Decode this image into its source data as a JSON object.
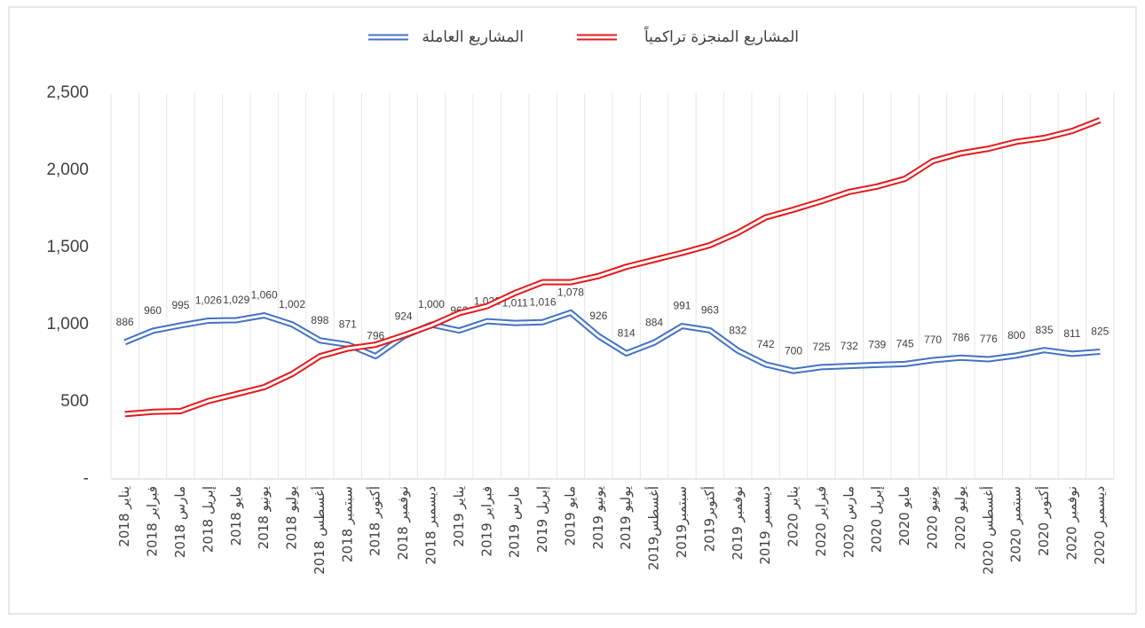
{
  "chart_data": {
    "type": "line",
    "categories": [
      "يناير 2018",
      "فبراير 2018",
      "مارس 2018",
      "إبريل 2018",
      "مايو 2018",
      "يونيو 2018",
      "يوليو 2018",
      "أغسطس 2018",
      "سبتمبر 2018",
      "أكتوبر 2018",
      "نوفمبر 2018",
      "ديسمبر 2018",
      "يناير 2019",
      "فبراير 2019",
      "مارس 2019",
      "إبريل 2019",
      "مايو 2019",
      "يونيو 2019",
      "يوليو 2019",
      "أغسطس2019",
      "سبتمبر2019",
      "أكتوبر2019",
      "نوفمبر 2019",
      "ديسمبر 2019",
      "يناير 2020",
      "فبراير 2020",
      "مارس 2020",
      "إبريل 2020",
      "مايو 2020",
      "يونيو 2020",
      "يوليو 2020",
      "أغسطس 2020",
      "سبتمبر 2020",
      "أكتوبر 2020",
      "نوفمبر 2020",
      "ديسمبر 2020"
    ],
    "series": [
      {
        "name": "المشاريع العاملة",
        "color": "#4472c4",
        "values": [
          886,
          960,
          995,
          1026,
          1029,
          1060,
          1002,
          898,
          871,
          796,
          924,
          1000,
          962,
          1022,
          1011,
          1016,
          1078,
          926,
          814,
          884,
          991,
          963,
          832,
          742,
          700,
          725,
          732,
          739,
          745,
          770,
          786,
          776,
          800,
          835,
          811,
          825
        ],
        "value_labels": [
          "886",
          "960",
          "995",
          "1,026",
          "1,029",
          "1,060",
          "1,002",
          "898",
          "871",
          "796",
          "924",
          "1,000",
          "962",
          "1,022",
          "1,011",
          "1,016",
          "1,078",
          "926",
          "814",
          "884",
          "991",
          "963",
          "832",
          "742",
          "700",
          "725",
          "732",
          "739",
          "745",
          "770",
          "786",
          "776",
          "800",
          "835",
          "811",
          "825"
        ]
      },
      {
        "name": "المشاريع المنجزة تراكمياً",
        "color": "#e31a1c",
        "values": [
          420,
          435,
          440,
          505,
          550,
          595,
          680,
          795,
          845,
          870,
          930,
          995,
          1075,
          1120,
          1205,
          1275,
          1275,
          1315,
          1375,
          1420,
          1465,
          1515,
          1595,
          1695,
          1745,
          1800,
          1860,
          1895,
          1945,
          2060,
          2110,
          2140,
          2185,
          2210,
          2255,
          2325
        ]
      }
    ],
    "ylim": [
      0,
      2500
    ],
    "yticks": [
      {
        "value": 0,
        "label": "-"
      },
      500,
      {
        "value": 1000,
        "label": "1,000"
      },
      {
        "value": 1500,
        "label": "1,500"
      },
      {
        "value": 2000,
        "label": "2,000"
      },
      {
        "value": 2500,
        "label": "2,500"
      }
    ]
  }
}
